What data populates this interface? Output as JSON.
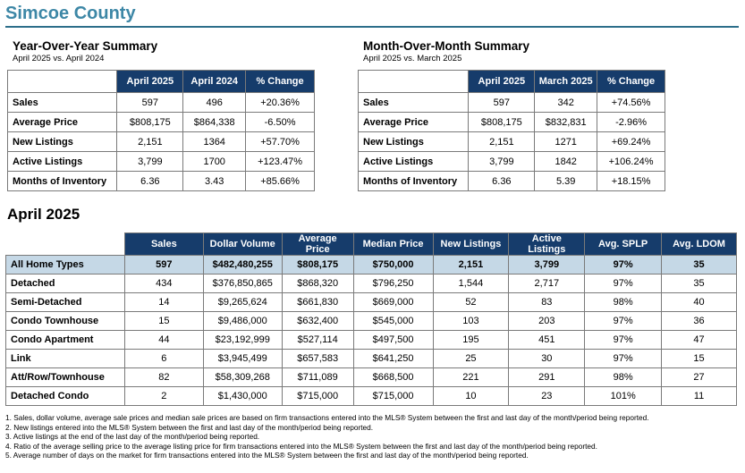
{
  "page_title": "Simcoe County",
  "yoy": {
    "heading": "Year-Over-Year Summary",
    "subheading": "April 2025 vs. April 2024",
    "columns": [
      "April 2025",
      "April 2024",
      "% Change"
    ],
    "rows": [
      {
        "label": "Sales",
        "values": [
          "597",
          "496",
          "+20.36%"
        ]
      },
      {
        "label": "Average Price",
        "values": [
          "$808,175",
          "$864,338",
          "-6.50%"
        ]
      },
      {
        "label": "New Listings",
        "values": [
          "2,151",
          "1364",
          "+57.70%"
        ]
      },
      {
        "label": "Active Listings",
        "values": [
          "3,799",
          "1700",
          "+123.47%"
        ]
      },
      {
        "label": "Months of Inventory",
        "values": [
          "6.36",
          "3.43",
          "+85.66%"
        ]
      }
    ]
  },
  "mom": {
    "heading": "Month-Over-Month Summary",
    "subheading": "April 2025 vs. March 2025",
    "columns": [
      "April 2025",
      "March 2025",
      "% Change"
    ],
    "rows": [
      {
        "label": "Sales",
        "values": [
          "597",
          "342",
          "+74.56%"
        ]
      },
      {
        "label": "Average Price",
        "values": [
          "$808,175",
          "$832,831",
          "-2.96%"
        ]
      },
      {
        "label": "New Listings",
        "values": [
          "2,151",
          "1271",
          "+69.24%"
        ]
      },
      {
        "label": "Active Listings",
        "values": [
          "3,799",
          "1842",
          "+106.24%"
        ]
      },
      {
        "label": "Months of Inventory",
        "values": [
          "6.36",
          "5.39",
          "+18.15%"
        ]
      }
    ]
  },
  "month_section": {
    "heading": "April 2025",
    "columns": [
      "Sales",
      "Dollar Volume",
      "Average Price",
      "Median Price",
      "New Listings",
      "Active Listings",
      "Avg. SPLP",
      "Avg. LDOM"
    ],
    "rows": [
      {
        "label": "All Home Types",
        "values": [
          "597",
          "$482,480,255",
          "$808,175",
          "$750,000",
          "2,151",
          "3,799",
          "97%",
          "35"
        ]
      },
      {
        "label": "Detached",
        "values": [
          "434",
          "$376,850,865",
          "$868,320",
          "$796,250",
          "1,544",
          "2,717",
          "97%",
          "35"
        ]
      },
      {
        "label": "Semi-Detached",
        "values": [
          "14",
          "$9,265,624",
          "$661,830",
          "$669,000",
          "52",
          "83",
          "98%",
          "40"
        ]
      },
      {
        "label": "Condo Townhouse",
        "values": [
          "15",
          "$9,486,000",
          "$632,400",
          "$545,000",
          "103",
          "203",
          "97%",
          "36"
        ]
      },
      {
        "label": "Condo Apartment",
        "values": [
          "44",
          "$23,192,999",
          "$527,114",
          "$497,500",
          "195",
          "451",
          "97%",
          "47"
        ]
      },
      {
        "label": "Link",
        "values": [
          "6",
          "$3,945,499",
          "$657,583",
          "$641,250",
          "25",
          "30",
          "97%",
          "15"
        ]
      },
      {
        "label": "Att/Row/Townhouse",
        "values": [
          "82",
          "$58,309,268",
          "$711,089",
          "$668,500",
          "221",
          "291",
          "98%",
          "27"
        ]
      },
      {
        "label": "Detached Condo",
        "values": [
          "2",
          "$1,430,000",
          "$715,000",
          "$715,000",
          "10",
          "23",
          "101%",
          "11"
        ]
      }
    ]
  },
  "footnotes": [
    "1. Sales, dollar volume, average sale prices and median sale prices are based on firm transactions entered into the MLS® System between the first and last day of the month/period being reported.",
    "2. New listings entered into the MLS® System between the first and last day of the month/period being reported.",
    "3. Active listings at the end of the last day of the month/period being reported.",
    "4. Ratio of the average selling price to the average listing price for firm transactions entered into the MLS® System between the first and last day of the month/period being reported.",
    "5. Average number of days on the market for firm transactions entered into the MLS® System between the first and last day of the month/period being reported."
  ],
  "colors": {
    "header_bg": "#163c6b",
    "title": "#3d87a6",
    "total_row_bg": "#c5d8e6"
  }
}
